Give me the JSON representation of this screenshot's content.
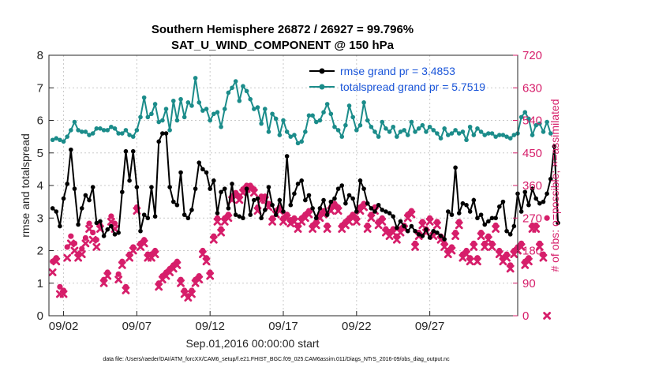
{
  "chart_data": {
    "type": "line",
    "title": "Southern Hemisphere 26872 / 26927 = 99.796%",
    "subtitle": "SAT_U_WIND_COMPONENT @ 150 hPa",
    "xlabel": "Sep.01,2016 00:00:00 start",
    "ylabel": "rmse and totalspread",
    "y2label": "# of obs: o=possible; ×=assimilated",
    "xlim": [
      0,
      32
    ],
    "ylim": [
      0,
      8
    ],
    "y2lim": [
      0,
      720
    ],
    "xtick_values": [
      1,
      6,
      11,
      16,
      21,
      26
    ],
    "xticks": [
      "09/02",
      "09/07",
      "09/12",
      "09/17",
      "09/22",
      "09/27"
    ],
    "yticks": [
      "0",
      "1",
      "2",
      "3",
      "4",
      "5",
      "6",
      "7",
      "8"
    ],
    "y2ticks": [
      "0",
      "90",
      "180",
      "270",
      "360",
      "450",
      "540",
      "630",
      "720"
    ],
    "legend": [
      "rmse grand pr = 3.4853",
      "totalspread grand pr = 5.7519"
    ],
    "legend_position": "top-right",
    "footnote": "data file: /Users/raeder/DAI/ATM_forcXX/CAM6_setup/f.e21.FHIST_BGC.f09_025.CAM6assim.011/Diags_NTrS_2016-09/obs_diag_output.nc",
    "x_step": 0.25,
    "series": [
      {
        "name": "rmse grand pr = 3.4853",
        "color": "#000000",
        "marker": "circle",
        "axis": "left",
        "values": [
          3.3,
          3.2,
          2.75,
          3.6,
          4.05,
          5.1,
          3.9,
          2.8,
          3.3,
          3.7,
          3.55,
          3.95,
          2.85,
          2.9,
          2.45,
          2.65,
          2.75,
          2.5,
          2.55,
          3.8,
          5.05,
          4.15,
          5.05,
          3.95,
          2.6,
          3.1,
          3.0,
          3.95,
          3.05,
          5.35,
          5.6,
          5.6,
          3.95,
          3.5,
          3.4,
          4.4,
          3.1,
          3.0,
          3.25,
          3.9,
          4.7,
          4.5,
          4.4,
          3.9,
          4.15,
          3.15,
          3.8,
          3.9,
          3.3,
          4.05,
          3.1,
          3.05,
          3.0,
          3.9,
          3.1,
          3.55,
          3.6,
          3.0,
          3.25,
          3.95,
          3.4,
          3.1,
          3.55,
          3.2,
          4.9,
          3.4,
          3.75,
          4.05,
          4.15,
          3.55,
          3.7,
          3.3,
          3.0,
          3.3,
          3.55,
          3.1,
          3.5,
          3.6,
          3.9,
          4.0,
          3.45,
          3.7,
          3.6,
          3.2,
          4.15,
          3.9,
          3.45,
          3.3,
          3.2,
          3.4,
          3.25,
          3.2,
          3.15,
          3.05,
          2.7,
          2.9,
          2.75,
          2.6,
          2.75,
          2.6,
          2.5,
          2.45,
          2.65,
          2.4,
          2.6,
          2.55,
          2.45,
          2.35,
          3.2,
          3.1,
          4.55,
          3.15,
          3.45,
          3.4,
          3.2,
          3.55,
          3.0,
          3.1,
          2.8,
          2.9,
          3.0,
          3.0,
          3.35,
          3.5,
          2.6,
          2.5,
          2.75,
          3.75,
          3.2,
          3.8,
          3.4,
          3.9,
          3.6,
          3.45,
          3.5,
          3.75,
          4.2,
          5.2,
          2.85
        ],
        "possible": [
          150,
          160,
          80,
          70,
          190,
          220,
          200,
          170,
          185,
          215,
          255,
          230,
          210,
          250,
          100,
          120,
          275,
          255,
          115,
          150,
          80,
          170,
          190,
          300,
          200,
          210,
          170,
          170,
          180,
          90,
          110,
          120,
          130,
          140,
          150,
          100,
          70,
          55,
          70,
          100,
          110,
          180,
          160,
          120,
          220,
          270,
          240,
          270,
          280,
          330,
          340,
          330,
          350,
          360,
          360,
          350,
          300,
          330,
          330,
          310,
          270,
          290,
          300,
          270,
          280,
          265,
          270,
          250,
          270,
          280,
          290,
          250,
          260,
          280,
          290,
          250,
          300,
          310,
          300,
          250,
          260,
          270,
          280,
          270,
          300,
          310,
          250,
          280,
          300,
          260,
          270,
          240,
          230,
          240,
          220,
          240,
          250,
          280,
          290,
          200,
          230,
          260,
          240,
          270,
          230,
          260,
          220,
          200,
          180,
          190,
          230,
          260,
          170,
          180,
          160,
          200,
          160,
          230,
          200,
          220,
          200,
          250,
          180,
          160,
          170,
          140,
          180,
          190,
          200,
          150,
          160,
          250,
          250,
          200,
          170,
          270
        ],
        "assimilated": [
          120,
          150,
          60,
          60,
          160,
          200,
          180,
          160,
          170,
          200,
          240,
          210,
          190,
          240,
          90,
          110,
          260,
          240,
          100,
          140,
          70,
          160,
          180,
          290,
          190,
          200,
          160,
          160,
          170,
          80,
          100,
          110,
          120,
          130,
          140,
          90,
          60,
          50,
          60,
          90,
          100,
          170,
          150,
          110,
          210,
          260,
          230,
          260,
          270,
          320,
          330,
          320,
          340,
          350,
          350,
          340,
          290,
          320,
          320,
          300,
          260,
          280,
          290,
          260,
          270,
          255,
          260,
          240,
          260,
          270,
          280,
          240,
          250,
          270,
          280,
          240,
          290,
          300,
          290,
          240,
          250,
          260,
          270,
          260,
          290,
          300,
          240,
          270,
          290,
          250,
          260,
          230,
          220,
          230,
          210,
          230,
          240,
          270,
          280,
          190,
          220,
          250,
          230,
          260,
          220,
          250,
          210,
          190,
          170,
          180,
          220,
          250,
          160,
          170,
          150,
          190,
          150,
          220,
          190,
          210,
          190,
          240,
          170,
          150,
          160,
          130,
          170,
          180,
          190,
          140,
          150,
          240,
          240,
          190,
          160,
          0
        ]
      },
      {
        "name": "totalspread grand pr = 5.7519",
        "color": "#1b8c8a",
        "marker": "circle",
        "axis": "left",
        "values": [
          5.4,
          5.45,
          5.4,
          5.35,
          5.5,
          5.7,
          5.95,
          5.7,
          5.65,
          5.65,
          5.55,
          5.6,
          5.75,
          5.75,
          5.7,
          5.7,
          5.8,
          5.75,
          5.6,
          5.6,
          5.7,
          5.55,
          5.5,
          5.7,
          6.1,
          6.7,
          6.1,
          6.2,
          6.5,
          5.95,
          6.0,
          6.35,
          5.7,
          6.6,
          6.0,
          6.65,
          6.1,
          6.55,
          6.45,
          7.3,
          6.55,
          6.3,
          6.35,
          6.0,
          6.2,
          6.25,
          5.8,
          6.35,
          6.85,
          7.0,
          7.2,
          6.6,
          7.05,
          6.9,
          6.65,
          6.35,
          6.4,
          5.9,
          6.35,
          5.65,
          6.2,
          6.05,
          5.55,
          6.0,
          5.65,
          5.5,
          5.55,
          5.3,
          5.35,
          5.65,
          6.15,
          6.15,
          5.95,
          6.0,
          6.25,
          6.5,
          6.2,
          5.8,
          5.7,
          5.5,
          5.85,
          6.45,
          6.1,
          5.7,
          5.85,
          6.55,
          6.0,
          5.8,
          5.65,
          5.5,
          5.95,
          5.75,
          5.65,
          5.8,
          5.5,
          5.65,
          5.7,
          5.55,
          5.95,
          5.65,
          5.75,
          5.85,
          5.65,
          5.8,
          5.7,
          5.6,
          5.45,
          5.75,
          5.55,
          5.6,
          5.7,
          5.6,
          5.65,
          5.4,
          5.8,
          5.55,
          5.75,
          5.65,
          5.55,
          5.6,
          5.6,
          5.5,
          5.55,
          5.55,
          5.5,
          5.45,
          5.55,
          5.6,
          6.1,
          6.25,
          6.05,
          5.55,
          5.85,
          5.9,
          5.65,
          5.95,
          5.6
        ]
      }
    ],
    "obs_color": "#d61e6a"
  }
}
